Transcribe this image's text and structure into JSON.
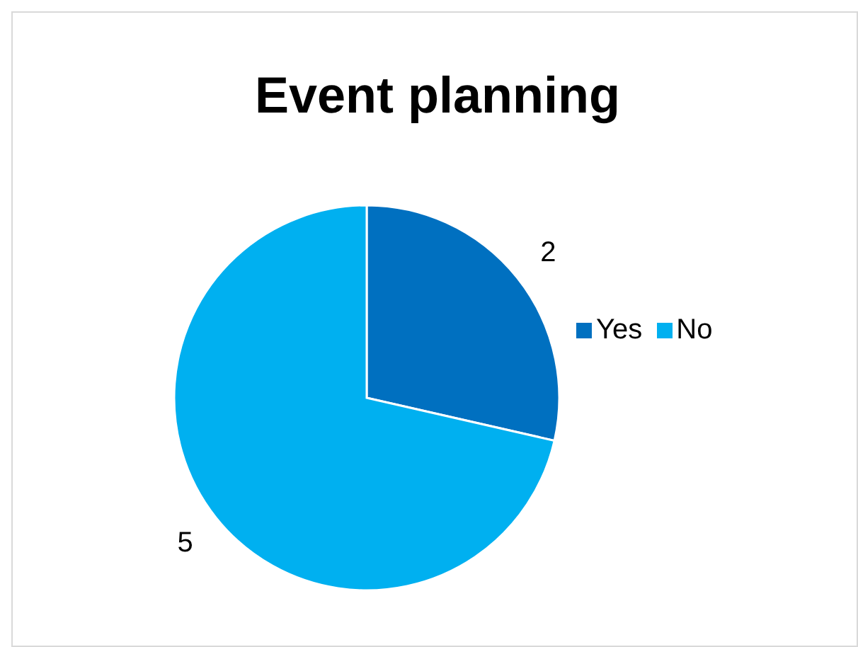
{
  "chart_data": {
    "type": "pie",
    "title": "Event planning",
    "categories": [
      "Yes",
      "No"
    ],
    "values": [
      2,
      5
    ],
    "colors": [
      "#0070c0",
      "#00b0f0"
    ],
    "data_labels": true,
    "legend": "right"
  }
}
